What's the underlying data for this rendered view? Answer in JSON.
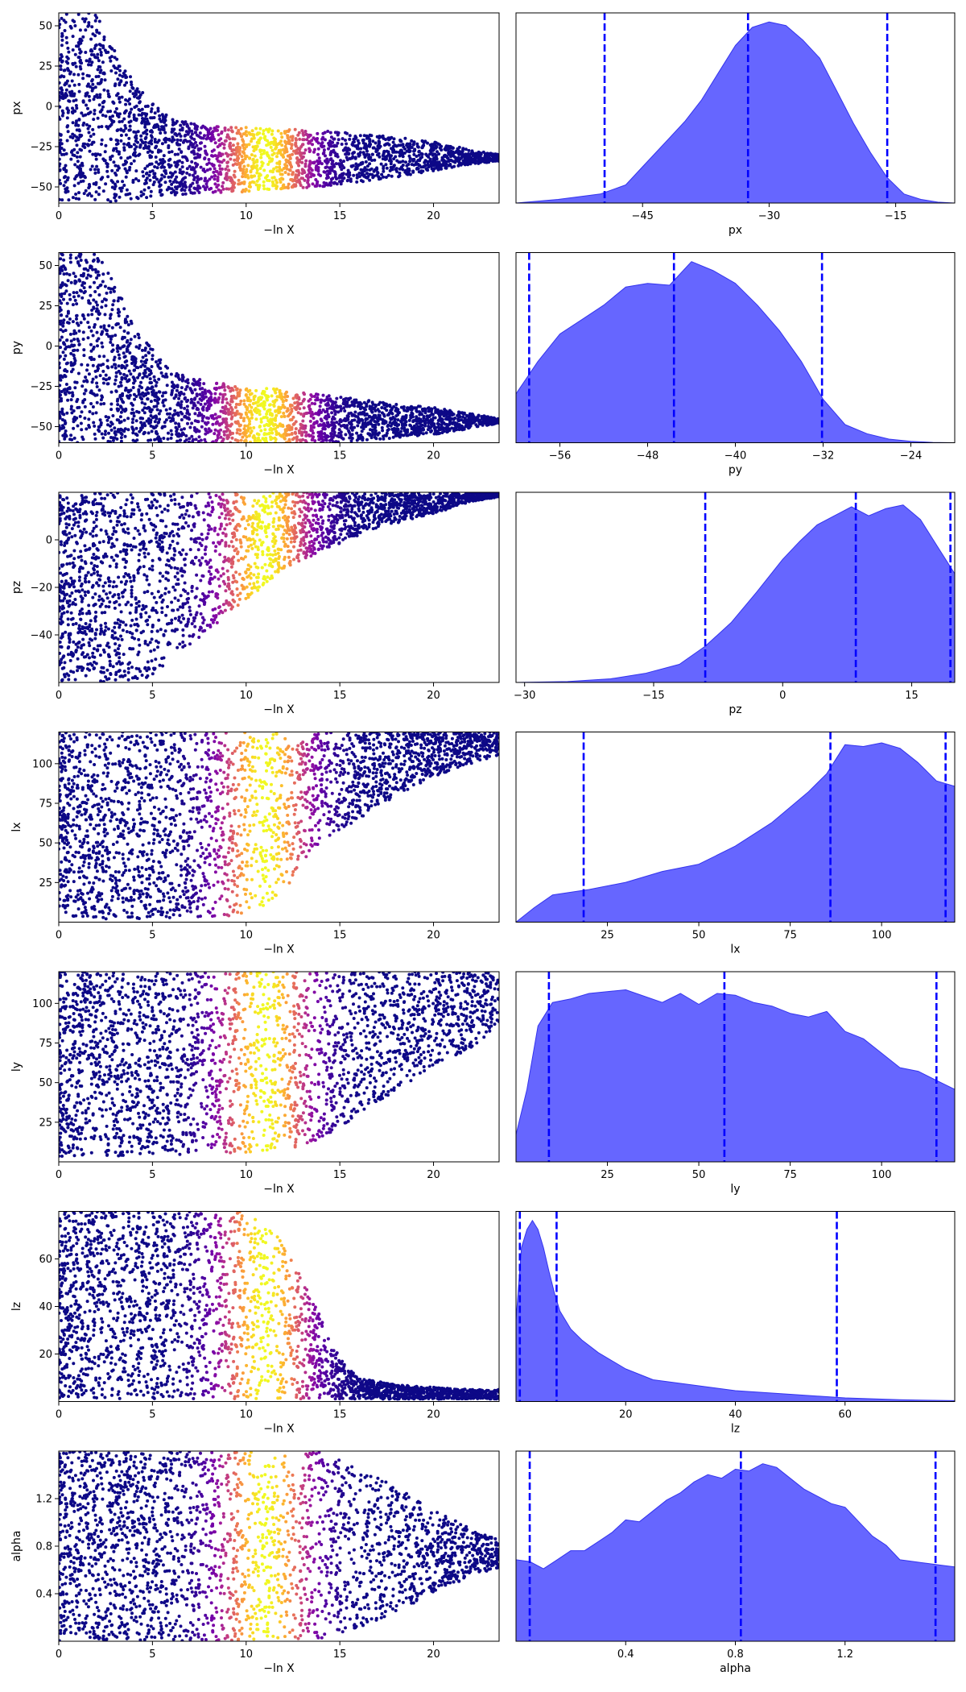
{
  "colors": {
    "kde_fill": "#6666ff",
    "kde_line": "#3333ee",
    "quantile_line": "#0000ff",
    "scatter_cold": "#0d0887",
    "scatter_hot": "#f0f921"
  },
  "chart_data": [
    {
      "type": "scatter",
      "parameter": "px",
      "xlabel": "−ln X",
      "ylabel": "px",
      "xlim": [
        0,
        23.5
      ],
      "ylim": [
        -60,
        58
      ],
      "xticks": [
        0,
        5,
        10,
        15,
        20
      ],
      "yticks": [
        -50,
        -25,
        0,
        25,
        50
      ],
      "colormap": "plasma",
      "colormap_peak_x": 11,
      "envelope": {
        "x": [
          0,
          1,
          2,
          3,
          4,
          5,
          6,
          8,
          10,
          12,
          14,
          16,
          18,
          20,
          22,
          23.5
        ],
        "lower": [
          -60,
          -60,
          -60,
          -60,
          -58,
          -56,
          -55,
          -54,
          -53,
          -51,
          -50,
          -47,
          -44,
          -40,
          -36,
          -34
        ],
        "upper": [
          58,
          58,
          58,
          35,
          15,
          2,
          -8,
          -12,
          -13,
          -14,
          -15,
          -17,
          -19,
          -22,
          -27,
          -30
        ]
      }
    },
    {
      "type": "area",
      "parameter": "px",
      "xlabel": "px",
      "xlim": [
        -60,
        -8
      ],
      "xticks": [
        -45,
        -30,
        -15
      ],
      "x": [
        -60,
        -55,
        -50,
        -47,
        -45,
        -42,
        -40,
        -38,
        -36,
        -34,
        -32,
        -30,
        -28,
        -26,
        -24,
        -22,
        -20,
        -18,
        -16,
        -14,
        -12,
        -10,
        -8
      ],
      "density": [
        0.0,
        0.02,
        0.05,
        0.1,
        0.2,
        0.35,
        0.45,
        0.57,
        0.72,
        0.87,
        0.97,
        1.0,
        0.98,
        0.9,
        0.8,
        0.62,
        0.44,
        0.28,
        0.14,
        0.05,
        0.02,
        0.005,
        0.0
      ],
      "quantiles": [
        -49.5,
        -32.5,
        -16
      ]
    },
    {
      "type": "scatter",
      "parameter": "py",
      "xlabel": "−ln X",
      "ylabel": "py",
      "xlim": [
        0,
        23.5
      ],
      "ylim": [
        -60,
        58
      ],
      "xticks": [
        0,
        5,
        10,
        15,
        20
      ],
      "yticks": [
        -50,
        -25,
        0,
        25,
        50
      ],
      "colormap": "plasma",
      "colormap_peak_x": 11,
      "envelope": {
        "x": [
          0,
          1,
          2,
          3,
          4,
          5,
          6,
          8,
          10,
          12,
          14,
          16,
          18,
          20,
          22,
          23.5
        ],
        "lower": [
          -60,
          -60,
          -60,
          -60,
          -60,
          -60,
          -60,
          -60,
          -60,
          -60,
          -60,
          -59,
          -57,
          -55,
          -51,
          -48
        ],
        "upper": [
          58,
          58,
          58,
          40,
          12,
          -2,
          -15,
          -22,
          -25,
          -27,
          -30,
          -33,
          -36,
          -38,
          -42,
          -45
        ]
      }
    },
    {
      "type": "area",
      "parameter": "py",
      "xlabel": "py",
      "xlim": [
        -60,
        -20
      ],
      "xticks": [
        -56,
        -48,
        -40,
        -32,
        -24
      ],
      "x": [
        -60,
        -58,
        -56,
        -54,
        -52,
        -50,
        -48,
        -46,
        -44,
        -42,
        -40,
        -38,
        -36,
        -34,
        -32,
        -30,
        -28,
        -26,
        -24,
        -22,
        -20
      ],
      "density": [
        0.27,
        0.45,
        0.6,
        0.68,
        0.76,
        0.86,
        0.88,
        0.87,
        1.0,
        0.95,
        0.88,
        0.76,
        0.62,
        0.45,
        0.24,
        0.1,
        0.05,
        0.02,
        0.008,
        0.002,
        0.0
      ],
      "quantiles": [
        -58.8,
        -45.6,
        -32.1
      ]
    },
    {
      "type": "scatter",
      "parameter": "pz",
      "xlabel": "−ln X",
      "ylabel": "pz",
      "xlim": [
        0,
        23.5
      ],
      "ylim": [
        -60,
        20
      ],
      "xticks": [
        0,
        5,
        10,
        15,
        20
      ],
      "yticks": [
        -40,
        -20,
        0
      ],
      "colormap": "plasma",
      "colormap_peak_x": 11,
      "envelope": {
        "x": [
          0,
          2,
          4,
          5,
          6,
          8,
          10,
          12,
          14,
          16,
          18,
          20,
          22,
          23.5
        ],
        "lower": [
          -60,
          -60,
          -60,
          -58,
          -50,
          -38,
          -26,
          -12,
          -5,
          2,
          7,
          11,
          16,
          18
        ],
        "upper": [
          20,
          20,
          20,
          20,
          20,
          20,
          20,
          20,
          20,
          20,
          20,
          20,
          20,
          20
        ]
      }
    },
    {
      "type": "area",
      "parameter": "pz",
      "xlabel": "pz",
      "xlim": [
        -31,
        20
      ],
      "xticks": [
        -30,
        -15,
        0,
        15
      ],
      "x": [
        -31,
        -25,
        -20,
        -16,
        -12,
        -9,
        -6,
        -3,
        0,
        2,
        4,
        6,
        8,
        10,
        12,
        14,
        16,
        18,
        20
      ],
      "density": [
        0.0,
        0.005,
        0.02,
        0.05,
        0.1,
        0.2,
        0.33,
        0.5,
        0.68,
        0.78,
        0.87,
        0.92,
        0.97,
        0.92,
        0.96,
        0.98,
        0.9,
        0.75,
        0.6
      ],
      "quantiles": [
        -9,
        8.5,
        19.5
      ]
    },
    {
      "type": "scatter",
      "parameter": "lx",
      "xlabel": "−ln X",
      "ylabel": "lx",
      "xlim": [
        0,
        23.5
      ],
      "ylim": [
        0,
        120
      ],
      "xticks": [
        0,
        5,
        10,
        15,
        20
      ],
      "yticks": [
        25,
        50,
        75,
        100
      ],
      "colormap": "plasma",
      "colormap_peak_x": 11,
      "envelope": {
        "x": [
          0,
          4,
          8,
          10,
          11,
          12,
          13,
          14,
          16,
          18,
          20,
          22,
          23.5
        ],
        "lower": [
          2,
          2,
          3,
          5,
          10,
          20,
          35,
          50,
          65,
          80,
          92,
          100,
          105
        ],
        "upper": [
          120,
          120,
          120,
          120,
          120,
          120,
          120,
          120,
          120,
          120,
          120,
          120,
          120
        ]
      }
    },
    {
      "type": "area",
      "parameter": "lx",
      "xlabel": "lx",
      "xlim": [
        0,
        120
      ],
      "xticks": [
        25,
        50,
        75,
        100
      ],
      "x": [
        0,
        5,
        10,
        20,
        30,
        40,
        50,
        60,
        70,
        80,
        85,
        90,
        95,
        100,
        105,
        110,
        115,
        120
      ],
      "density": [
        0.0,
        0.08,
        0.15,
        0.18,
        0.22,
        0.28,
        0.32,
        0.42,
        0.55,
        0.72,
        0.82,
        0.98,
        0.97,
        0.99,
        0.96,
        0.88,
        0.78,
        0.75
      ],
      "quantiles": [
        18.5,
        86,
        117.5
      ]
    },
    {
      "type": "scatter",
      "parameter": "ly",
      "xlabel": "−ln X",
      "ylabel": "ly",
      "xlim": [
        0,
        23.5
      ],
      "ylim": [
        0,
        120
      ],
      "xticks": [
        0,
        5,
        10,
        15,
        20
      ],
      "yticks": [
        25,
        50,
        75,
        100
      ],
      "colormap": "plasma",
      "colormap_peak_x": 11,
      "envelope": {
        "x": [
          0,
          4,
          8,
          10,
          12,
          13,
          14,
          16,
          18,
          20,
          22,
          23.5
        ],
        "lower": [
          3,
          4,
          5,
          6,
          8,
          10,
          15,
          28,
          45,
          60,
          72,
          85
        ],
        "upper": [
          120,
          120,
          120,
          120,
          120,
          120,
          120,
          120,
          120,
          120,
          120,
          120
        ]
      }
    },
    {
      "type": "area",
      "parameter": "ly",
      "xlabel": "ly",
      "xlim": [
        0,
        120
      ],
      "xticks": [
        25,
        50,
        75,
        100
      ],
      "x": [
        0,
        3,
        6,
        10,
        15,
        20,
        30,
        40,
        45,
        50,
        55,
        60,
        65,
        70,
        75,
        80,
        85,
        90,
        95,
        100,
        105,
        110,
        115,
        120
      ],
      "density": [
        0.15,
        0.4,
        0.75,
        0.88,
        0.9,
        0.93,
        0.95,
        0.88,
        0.93,
        0.87,
        0.93,
        0.92,
        0.88,
        0.86,
        0.82,
        0.8,
        0.83,
        0.72,
        0.68,
        0.6,
        0.52,
        0.5,
        0.45,
        0.4
      ],
      "quantiles": [
        9,
        57,
        115
      ]
    },
    {
      "type": "scatter",
      "parameter": "lz",
      "xlabel": "−ln X",
      "ylabel": "lz",
      "xlim": [
        0,
        23.5
      ],
      "ylim": [
        0,
        80
      ],
      "xticks": [
        0,
        5,
        10,
        15,
        20
      ],
      "yticks": [
        20,
        40,
        60
      ],
      "colormap": "plasma",
      "colormap_peak_x": 11,
      "envelope": {
        "x": [
          0,
          4,
          8,
          9,
          10,
          11,
          12,
          13,
          14,
          15,
          16,
          18,
          20,
          22,
          23.5
        ],
        "lower": [
          1,
          1,
          1,
          1,
          1,
          1,
          1,
          1,
          1,
          1,
          1,
          1,
          1,
          1,
          1
        ],
        "upper": [
          80,
          80,
          80,
          80,
          80,
          76,
          66,
          52,
          35,
          18,
          10,
          7,
          6,
          5,
          5
        ]
      }
    },
    {
      "type": "area",
      "parameter": "lz",
      "xlabel": "lz",
      "xlim": [
        0,
        80
      ],
      "xticks": [
        20,
        40,
        60
      ],
      "x": [
        0,
        1,
        2,
        3,
        4,
        5,
        6,
        7,
        8,
        10,
        12,
        15,
        20,
        25,
        30,
        40,
        50,
        60,
        70,
        80
      ],
      "density": [
        0.45,
        0.85,
        0.95,
        1.0,
        0.95,
        0.85,
        0.72,
        0.6,
        0.5,
        0.4,
        0.34,
        0.27,
        0.18,
        0.12,
        0.1,
        0.06,
        0.04,
        0.02,
        0.01,
        0.005
      ],
      "quantiles": [
        0.7,
        7.4,
        58.5
      ]
    },
    {
      "type": "scatter",
      "parameter": "alpha",
      "xlabel": "−ln X",
      "ylabel": "alpha",
      "xlim": [
        0,
        23.5
      ],
      "ylim": [
        0,
        1.6
      ],
      "xticks": [
        0,
        5,
        10,
        15,
        20
      ],
      "yticks": [
        0.4,
        0.8,
        1.2
      ],
      "colormap": "plasma",
      "colormap_peak_x": 11,
      "envelope": {
        "x": [
          0,
          4,
          8,
          10,
          12,
          14,
          16,
          18,
          20,
          22,
          23.5
        ],
        "lower": [
          0,
          0,
          0,
          0,
          0,
          0.02,
          0.1,
          0.25,
          0.4,
          0.55,
          0.62
        ],
        "upper": [
          1.6,
          1.6,
          1.6,
          1.6,
          1.6,
          1.6,
          1.45,
          1.3,
          1.1,
          0.95,
          0.85
        ]
      }
    },
    {
      "type": "area",
      "parameter": "alpha",
      "xlabel": "alpha",
      "xlim": [
        0,
        1.6
      ],
      "xticks": [
        0.4,
        0.8,
        1.2
      ],
      "x": [
        0,
        0.05,
        0.1,
        0.15,
        0.2,
        0.25,
        0.3,
        0.35,
        0.4,
        0.45,
        0.5,
        0.55,
        0.6,
        0.65,
        0.7,
        0.75,
        0.8,
        0.85,
        0.9,
        0.95,
        1.0,
        1.05,
        1.1,
        1.15,
        1.2,
        1.25,
        1.3,
        1.35,
        1.4,
        1.45,
        1.5,
        1.55,
        1.6
      ],
      "density": [
        0.45,
        0.44,
        0.4,
        0.45,
        0.5,
        0.5,
        0.55,
        0.6,
        0.67,
        0.66,
        0.72,
        0.78,
        0.82,
        0.88,
        0.92,
        0.9,
        0.95,
        0.94,
        0.98,
        0.96,
        0.9,
        0.84,
        0.8,
        0.76,
        0.74,
        0.66,
        0.58,
        0.53,
        0.45,
        0.44,
        0.43,
        0.42,
        0.41
      ],
      "quantiles": [
        0.05,
        0.82,
        1.53
      ]
    }
  ]
}
